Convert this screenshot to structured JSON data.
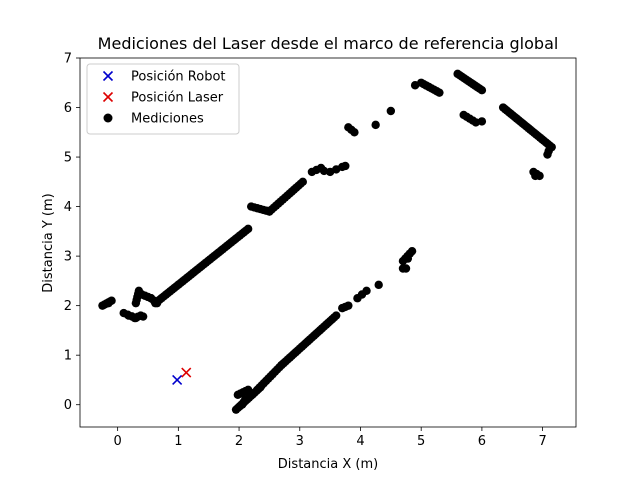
{
  "chart_data": {
    "type": "scatter",
    "title": "Mediciones del Laser desde el marco de referencia global",
    "xlabel": "Distancia X (m)",
    "ylabel": "Distancia Y (m)",
    "xlim": [
      -0.62,
      7.55
    ],
    "ylim": [
      -0.45,
      7.0
    ],
    "xticks": [
      0,
      1,
      2,
      3,
      4,
      5,
      6,
      7
    ],
    "yticks": [
      0,
      1,
      2,
      3,
      4,
      5,
      6,
      7
    ],
    "grid": false,
    "legend_position": "top-left",
    "series": [
      {
        "name": "Posición Robot",
        "marker": "x",
        "color": "#0000cc",
        "points": [
          [
            0.98,
            0.5
          ]
        ]
      },
      {
        "name": "Posición Laser",
        "marker": "x",
        "color": "#dd0000",
        "points": [
          [
            1.13,
            0.65
          ]
        ]
      },
      {
        "name": "Mediciones",
        "marker": "o",
        "color": "#000000",
        "segments": [
          {
            "from": [
              -0.25,
              2.0
            ],
            "to": [
              -0.1,
              2.1
            ],
            "n": 6
          },
          {
            "from": [
              0.1,
              1.85
            ],
            "to": [
              0.3,
              1.75
            ],
            "n": 4
          },
          {
            "from": [
              0.28,
              1.75
            ],
            "to": [
              0.38,
              1.8
            ],
            "n": 3
          },
          {
            "from": [
              0.3,
              2.05
            ],
            "to": [
              0.35,
              2.3
            ],
            "n": 5
          },
          {
            "from": [
              0.35,
              2.25
            ],
            "to": [
              0.55,
              2.15
            ],
            "n": 5
          },
          {
            "from": [
              0.55,
              2.15
            ],
            "to": [
              0.65,
              2.05
            ],
            "n": 3
          },
          {
            "from": [
              0.62,
              2.05
            ],
            "to": [
              2.15,
              3.55
            ],
            "n": 45
          },
          {
            "from": [
              2.2,
              4.0
            ],
            "to": [
              2.5,
              3.9
            ],
            "n": 7
          },
          {
            "from": [
              2.5,
              3.9
            ],
            "to": [
              3.05,
              4.5
            ],
            "n": 16
          },
          {
            "from": [
              3.2,
              4.7
            ],
            "to": [
              3.35,
              4.78
            ],
            "n": 3
          },
          {
            "from": [
              3.5,
              4.7
            ],
            "to": [
              3.7,
              4.8
            ],
            "n": 3
          },
          {
            "from": [
              3.8,
              5.6
            ],
            "to": [
              3.9,
              5.5
            ],
            "n": 3
          },
          {
            "from": [
              1.95,
              -0.1
            ],
            "to": [
              2.35,
              0.35
            ],
            "n": 14
          },
          {
            "from": [
              1.98,
              0.2
            ],
            "to": [
              2.15,
              0.3
            ],
            "n": 5
          },
          {
            "from": [
              2.05,
              0.0
            ],
            "to": [
              2.1,
              0.1
            ],
            "n": 3
          },
          {
            "from": [
              2.3,
              0.3
            ],
            "to": [
              2.7,
              0.8
            ],
            "n": 12
          },
          {
            "from": [
              2.7,
              0.8
            ],
            "to": [
              3.6,
              1.8
            ],
            "n": 28
          },
          {
            "from": [
              3.7,
              1.95
            ],
            "to": [
              3.8,
              2.0
            ],
            "n": 3
          },
          {
            "from": [
              3.95,
              2.15
            ],
            "to": [
              4.1,
              2.3
            ],
            "n": 3
          },
          {
            "from": [
              4.7,
              2.75
            ],
            "to": [
              4.75,
              2.75
            ],
            "n": 2
          },
          {
            "from": [
              4.7,
              2.9
            ],
            "to": [
              4.85,
              3.1
            ],
            "n": 5
          },
          {
            "from": [
              5.0,
              6.5
            ],
            "to": [
              5.3,
              6.3
            ],
            "n": 8
          },
          {
            "from": [
              5.6,
              6.68
            ],
            "to": [
              6.0,
              6.35
            ],
            "n": 12
          },
          {
            "from": [
              5.7,
              5.85
            ],
            "to": [
              5.9,
              5.7
            ],
            "n": 5
          },
          {
            "from": [
              6.35,
              6.0
            ],
            "to": [
              7.15,
              5.2
            ],
            "n": 26
          },
          {
            "from": [
              6.85,
              4.7
            ],
            "to": [
              6.95,
              4.62
            ],
            "n": 3
          }
        ],
        "points": [
          [
            -0.15,
            2.05
          ],
          [
            0.18,
            1.8
          ],
          [
            0.42,
            1.78
          ],
          [
            3.4,
            4.72
          ],
          [
            3.75,
            4.82
          ],
          [
            4.25,
            5.65
          ],
          [
            4.5,
            5.93
          ],
          [
            4.3,
            2.42
          ],
          [
            4.9,
            6.45
          ],
          [
            6.0,
            5.72
          ],
          [
            7.08,
            5.05
          ],
          [
            7.1,
            5.12
          ],
          [
            6.88,
            4.62
          ],
          [
            4.78,
            2.95
          ]
        ]
      }
    ]
  }
}
